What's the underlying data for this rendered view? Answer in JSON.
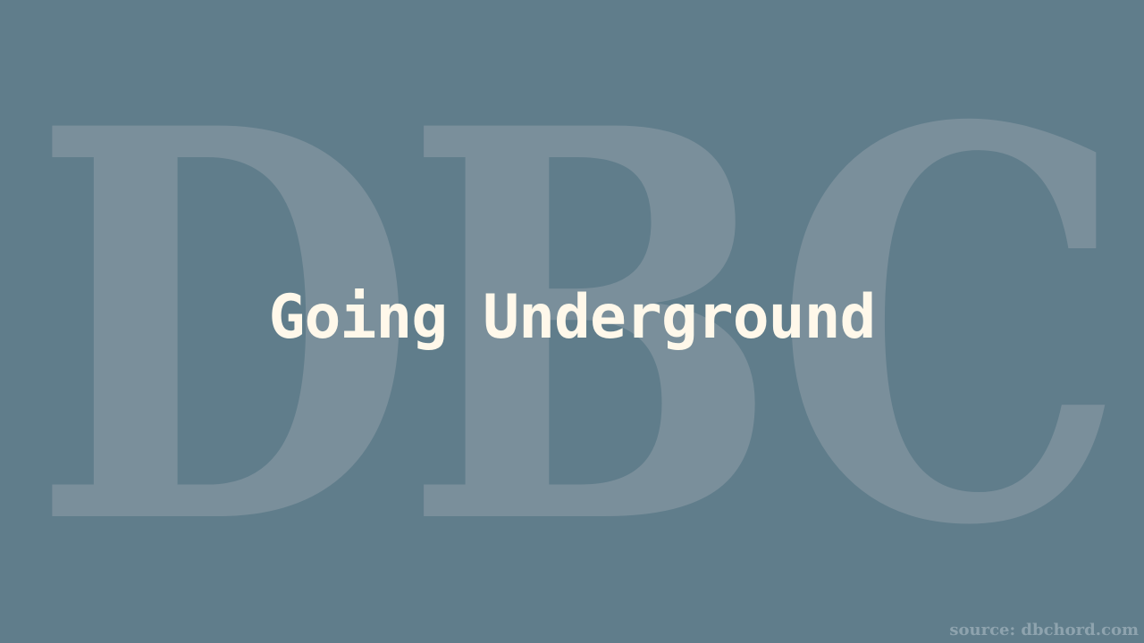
{
  "slide": {
    "title": "Going Underground",
    "watermark_text": "DBC",
    "source_text": "source: dbchord.com"
  },
  "colors": {
    "background": "#607d8b",
    "watermark": "#7a8f9b",
    "title_text": "#fff8ea",
    "source_text": "#8ea3ae"
  }
}
